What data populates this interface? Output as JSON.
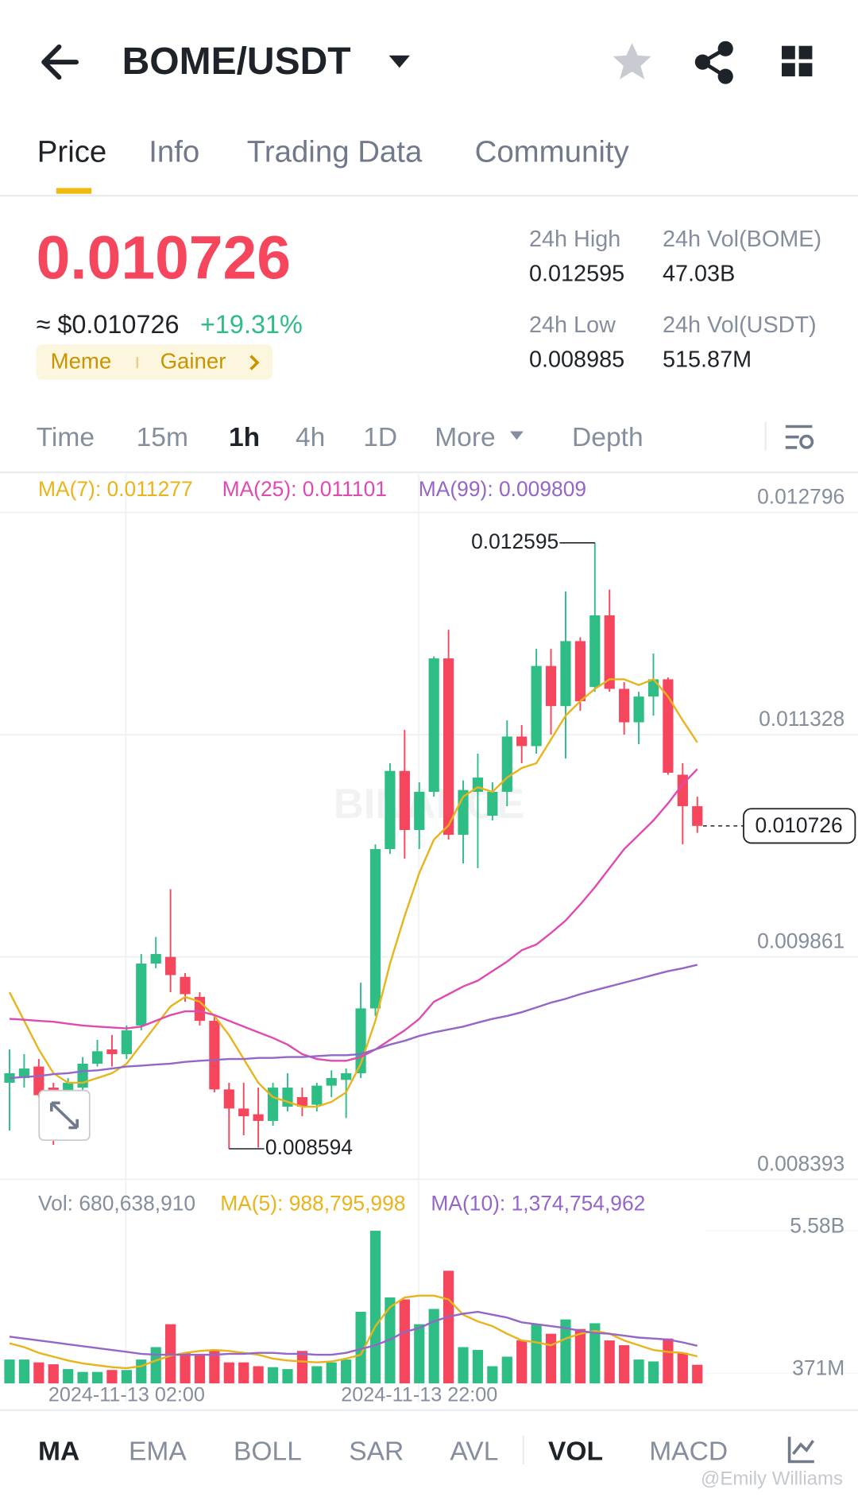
{
  "header": {
    "pair": "BOME/USDT"
  },
  "tabs": [
    "Price",
    "Info",
    "Trading Data",
    "Community"
  ],
  "ticker": {
    "price": "0.010726",
    "usd": "≈ $0.010726",
    "change": "+19.31%",
    "tags": [
      "Meme",
      "Gainer"
    ]
  },
  "stats": [
    {
      "label": "24h High",
      "value": "0.012595"
    },
    {
      "label": "24h Vol(BOME)",
      "value": "47.03B"
    },
    {
      "label": "24h Low",
      "value": "0.008985"
    },
    {
      "label": "24h Vol(USDT)",
      "value": "515.87M"
    }
  ],
  "intervals": [
    "Time",
    "15m",
    "1h",
    "4h",
    "1D",
    "More",
    "Depth"
  ],
  "indicators": [
    "MA",
    "EMA",
    "BOLL",
    "SAR",
    "AVL",
    "VOL",
    "MACD"
  ],
  "watermark": "@Emily Williams",
  "chart_data": [
    {
      "type": "candlestick",
      "up_color": "#2ebd85",
      "down_color": "#f6465d",
      "open": [
        0.00903,
        0.009061,
        0.009137,
        0.008998,
        0.008935,
        0.008998,
        0.009156,
        0.00925,
        0.009219,
        0.009408,
        0.009817,
        0.009861,
        0.009729,
        0.009597,
        0.009439,
        0.008986,
        0.00886,
        0.008822,
        0.008778,
        0.008872,
        0.008935,
        0.008885,
        0.009011,
        0.009049,
        0.009093,
        0.009521,
        0.010573,
        0.011089,
        0.010699,
        0.010951,
        0.011832,
        0.010667,
        0.010951,
        0.010793,
        0.010951,
        0.011316,
        0.011253,
        0.011782,
        0.011517,
        0.011946,
        0.011643,
        0.012116,
        0.011631,
        0.01141,
        0.01158,
        0.011694,
        0.011064,
        0.010856
      ],
      "high": [
        0.00925,
        0.009219,
        0.009187,
        0.00903,
        0.009061,
        0.0092,
        0.009313,
        0.009345,
        0.009408,
        0.00988,
        0.009993,
        0.010308,
        0.009754,
        0.009628,
        0.009471,
        0.00903,
        0.00903,
        0.008998,
        0.00903,
        0.009093,
        0.008998,
        0.00903,
        0.009112,
        0.009124,
        0.009691,
        0.010604,
        0.01114,
        0.01136,
        0.011014,
        0.011845,
        0.012021,
        0.011026,
        0.011203,
        0.011014,
        0.011423,
        0.011392,
        0.011895,
        0.011895,
        0.012273,
        0.011971,
        0.012595,
        0.012286,
        0.011675,
        0.011612,
        0.011864,
        0.011706,
        0.01114,
        0.010919
      ],
      "low": [
        0.008715,
        0.008998,
        0.008935,
        0.00862,
        0.008841,
        0.008967,
        0.009137,
        0.009137,
        0.009187,
        0.009376,
        0.009786,
        0.009628,
        0.009565,
        0.009408,
        0.008967,
        0.008594,
        0.008683,
        0.008602,
        0.008746,
        0.008841,
        0.008809,
        0.008841,
        0.008935,
        0.008797,
        0.009061,
        0.009471,
        0.010541,
        0.01051,
        0.010573,
        0.010919,
        0.010636,
        0.010478,
        0.010447,
        0.010762,
        0.010856,
        0.01114,
        0.011203,
        0.011329,
        0.011171,
        0.011486,
        0.011612,
        0.011612,
        0.011329,
        0.011266,
        0.011454,
        0.011064,
        0.010604,
        0.01068
      ],
      "close": [
        0.009093,
        0.009124,
        0.008948,
        0.008872,
        0.00903,
        0.009156,
        0.009238,
        0.009219,
        0.009376,
        0.009817,
        0.00988,
        0.009741,
        0.009615,
        0.009439,
        0.008986,
        0.00886,
        0.008809,
        0.008778,
        0.008998,
        0.008998,
        0.008872,
        0.009011,
        0.009061,
        0.009093,
        0.009521,
        0.010573,
        0.011089,
        0.010699,
        0.010951,
        0.011832,
        0.010667,
        0.010963,
        0.011045,
        0.010951,
        0.011316,
        0.011253,
        0.011782,
        0.011517,
        0.011946,
        0.011549,
        0.012116,
        0.011631,
        0.01141,
        0.01158,
        0.011694,
        0.011077,
        0.010856,
        0.010726
      ],
      "series": [
        {
          "name": "MA(7): 0.011277",
          "color": "#e9b41b",
          "values": [
            0.009628,
            0.009439,
            0.00925,
            0.009093,
            0.00903,
            0.00903,
            0.009061,
            0.009093,
            0.009156,
            0.009282,
            0.009408,
            0.009534,
            0.009597,
            0.009565,
            0.009471,
            0.009345,
            0.009187,
            0.00903,
            0.008935,
            0.008904,
            0.008872,
            0.008872,
            0.008904,
            0.008967,
            0.009156,
            0.009439,
            0.009817,
            0.010131,
            0.010415,
            0.010636,
            0.01073,
            0.010919,
            0.010982,
            0.010951,
            0.011045,
            0.011108,
            0.01114,
            0.011297,
            0.011454,
            0.011549,
            0.011631,
            0.011694,
            0.011694,
            0.011656,
            0.011694,
            0.01158,
            0.011423,
            0.011277
          ]
        },
        {
          "name": "MA(25): 0.011101",
          "color": "#e04ab0",
          "values": [
            0.009452,
            0.009446,
            0.009439,
            0.009433,
            0.00942,
            0.009408,
            0.009401,
            0.009395,
            0.009389,
            0.009401,
            0.009439,
            0.009477,
            0.009502,
            0.009502,
            0.009477,
            0.009439,
            0.009401,
            0.009363,
            0.009326,
            0.009282,
            0.009219,
            0.009187,
            0.009175,
            0.009175,
            0.0092,
            0.00925,
            0.009313,
            0.009376,
            0.009452,
            0.009565,
            0.009615,
            0.009666,
            0.009704,
            0.009767,
            0.00983,
            0.009905,
            0.009943,
            0.010019,
            0.010101,
            0.010207,
            0.010321,
            0.010447,
            0.010573,
            0.010667,
            0.010762,
            0.010875,
            0.011001,
            0.011101
          ]
        },
        {
          "name": "MA(99): 0.009809",
          "color": "#9466c8",
          "values": [
            0.009061,
            0.009068,
            0.009074,
            0.009087,
            0.009093,
            0.009106,
            0.009112,
            0.009124,
            0.009137,
            0.009143,
            0.00915,
            0.009156,
            0.009168,
            0.009175,
            0.009181,
            0.009187,
            0.009187,
            0.009194,
            0.009194,
            0.0092,
            0.0092,
            0.009206,
            0.009212,
            0.009212,
            0.009219,
            0.00925,
            0.009282,
            0.009307,
            0.009339,
            0.009363,
            0.009382,
            0.009401,
            0.009427,
            0.009452,
            0.009471,
            0.009496,
            0.009527,
            0.009559,
            0.009584,
            0.009615,
            0.009641,
            0.009666,
            0.009691,
            0.009716,
            0.009742,
            0.009767,
            0.009786,
            0.009809
          ]
        }
      ],
      "ylim": [
        0.008393,
        0.013048
      ],
      "yticks": [
        0.012796,
        0.011328,
        0.009861,
        0.008393
      ],
      "high_label": 0.012595,
      "low_label": 0.008594,
      "last_price": 0.010726,
      "watermark": "BINANCE"
    },
    {
      "type": "bar",
      "legend": "Vol: 680,638,910",
      "categories": [
        null,
        null,
        null,
        null,
        null,
        null,
        null,
        null,
        "2024-11-13 02:00",
        null,
        null,
        null,
        null,
        null,
        null,
        null,
        null,
        null,
        null,
        null,
        null,
        null,
        null,
        null,
        null,
        null,
        null,
        null,
        "2024-11-13 22:00",
        null,
        null,
        null,
        null,
        null,
        null,
        null,
        null,
        null,
        null,
        null,
        null,
        null,
        null,
        null,
        null,
        null,
        null,
        null
      ],
      "values": [
        872000000,
        872000000,
        768000000,
        698000000,
        523000000,
        419000000,
        419000000,
        489000000,
        489000000,
        872000000,
        1326000000,
        2164000000,
        1117000000,
        1047000000,
        1222000000,
        768000000,
        768000000,
        628000000,
        593000000,
        523000000,
        1187000000,
        628000000,
        768000000,
        872000000,
        2618000000,
        5580000000,
        3141000000,
        3071000000,
        2164000000,
        2722000000,
        4118000000,
        1326000000,
        1222000000,
        628000000,
        977000000,
        1571000000,
        2164000000,
        1815000000,
        2338000000,
        1989000000,
        2199000000,
        1571000000,
        1396000000,
        872000000,
        803000000,
        1640000000,
        1117000000,
        680638910
      ],
      "series": [
        {
          "name": "MA(5): 988,795,998",
          "color": "#e9b41b",
          "values": [
            1465000000,
            1325000000,
            1116000000,
            977000000,
            837000000,
            732000000,
            663000000,
            593000000,
            558000000,
            628000000,
            837000000,
            1011000000,
            1116000000,
            1186000000,
            1221000000,
            1186000000,
            1116000000,
            1046000000,
            907000000,
            837000000,
            802000000,
            767000000,
            802000000,
            907000000,
            1046000000,
            2093000000,
            2790000000,
            3139000000,
            3209000000,
            3209000000,
            3069000000,
            2511000000,
            2267000000,
            2093000000,
            1814000000,
            1569000000,
            1500000000,
            1395000000,
            1639000000,
            1814000000,
            1918000000,
            1814000000,
            1569000000,
            1395000000,
            1221000000,
            1151000000,
            1116000000,
            988795998
          ]
        },
        {
          "name": "MA(10): 1,374,754,962",
          "color": "#9466c8",
          "values": [
            1709000000,
            1639000000,
            1569000000,
            1500000000,
            1430000000,
            1360000000,
            1290000000,
            1221000000,
            1151000000,
            1081000000,
            1046000000,
            1046000000,
            1046000000,
            1046000000,
            1046000000,
            1081000000,
            1081000000,
            1116000000,
            1116000000,
            1081000000,
            1081000000,
            1046000000,
            1046000000,
            1116000000,
            1256000000,
            1395000000,
            1604000000,
            1883000000,
            2023000000,
            2267000000,
            2441000000,
            2546000000,
            2616000000,
            2511000000,
            2406000000,
            2232000000,
            2162000000,
            2093000000,
            2023000000,
            1918000000,
            1848000000,
            1814000000,
            1744000000,
            1674000000,
            1639000000,
            1604000000,
            1500000000,
            1374754962
          ]
        }
      ],
      "ylim": [
        0,
        5580000000
      ],
      "yticks": [
        {
          "value": 5580000000,
          "label": "5.58B"
        },
        {
          "value": 371000000,
          "label": "371M"
        }
      ]
    }
  ]
}
